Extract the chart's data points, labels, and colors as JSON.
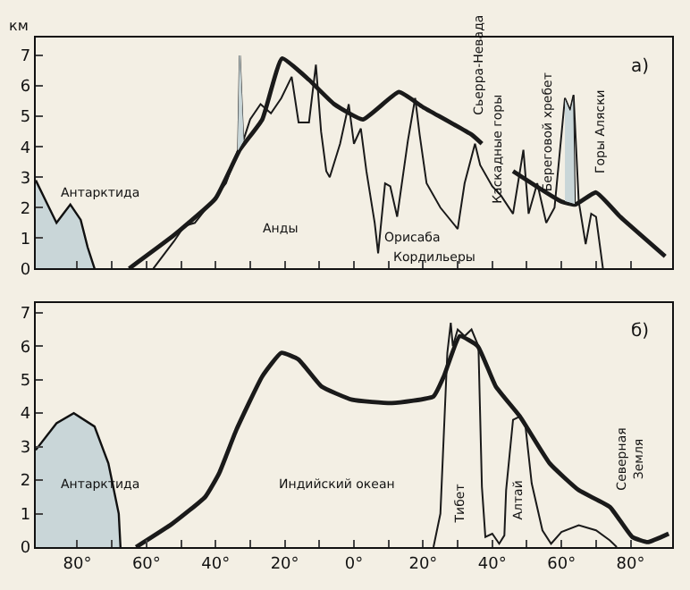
{
  "chart_data": [
    {
      "type": "line",
      "title": "а)",
      "ylabel": "км",
      "xlim": [
        -92,
        92
      ],
      "ylim": [
        0,
        7.6
      ],
      "yticks": [
        0,
        1,
        2,
        3,
        4,
        5,
        6,
        7
      ],
      "xticks": [
        {
          "value": -80,
          "label": null
        },
        {
          "value": -70,
          "label": null
        },
        {
          "value": -60,
          "label": null
        },
        {
          "value": -50,
          "label": null
        },
        {
          "value": -40,
          "label": null
        },
        {
          "value": -30,
          "label": null
        },
        {
          "value": -20,
          "label": null
        },
        {
          "value": -10,
          "label": null
        },
        {
          "value": 0,
          "label": null
        },
        {
          "value": 10,
          "label": null
        },
        {
          "value": 20,
          "label": null
        },
        {
          "value": 30,
          "label": null
        },
        {
          "value": 40,
          "label": null
        },
        {
          "value": 50,
          "label": null
        },
        {
          "value": 60,
          "label": null
        },
        {
          "value": 70,
          "label": null
        },
        {
          "value": 80,
          "label": null
        }
      ],
      "tick_labels": "y",
      "grid": false,
      "series": [
        {
          "type": "area",
          "color": "#c9d6d8",
          "x": [
            -92,
            -89,
            -86,
            -84,
            -82,
            -79,
            -77,
            -75
          ],
          "values": [
            2.9,
            2.2,
            1.5,
            1.8,
            2.1,
            1.6,
            0.7,
            0
          ]
        },
        {
          "color": "#1a1a1a",
          "x": [
            -65,
            -52,
            -40,
            -33,
            -26.5,
            -20.8,
            -13,
            -5.7,
            2.6,
            13,
            20,
            34,
            37,
            41,
            46,
            60,
            64,
            70,
            77,
            90
          ],
          "values": [
            0,
            1.1,
            2.3,
            3.9,
            4.9,
            6.9,
            6.2,
            5.4,
            4.9,
            5.8,
            5.3,
            4.4,
            4.1,
            null,
            3.2,
            2.2,
            2.1,
            2.5,
            1.7,
            0.4
          ]
        },
        {
          "color": "#1a1a1a",
          "x": [
            -58,
            -52,
            -49,
            -46,
            -37,
            -33.5,
            -33,
            -32,
            -30,
            -27,
            -24,
            -21,
            -18,
            -16,
            -13,
            -11,
            -9.5,
            -8,
            -7,
            -4,
            -1.5,
            0,
            2,
            3.6,
            6,
            7,
            9,
            10.5,
            12.5,
            15.6,
            17.7,
            19,
            21,
            25,
            30,
            32,
            35,
            36.5,
            40,
            42.5,
            46,
            49,
            50.5,
            53,
            55.6,
            58,
            61,
            62.5,
            63.5,
            65,
            67,
            68.6,
            70,
            72
          ],
          "values": [
            0,
            0.9,
            1.4,
            1.5,
            2.8,
            3.9,
            7.0,
            4.2,
            4.9,
            5.4,
            5.1,
            5.6,
            6.3,
            4.8,
            4.8,
            6.7,
            4.5,
            3.2,
            3.0,
            4.1,
            5.4,
            4.1,
            4.6,
            3.2,
            1.5,
            0.5,
            2.8,
            2.7,
            1.7,
            4.2,
            5.6,
            4.4,
            2.8,
            2.0,
            1.3,
            2.8,
            4.1,
            3.4,
            2.7,
            2.4,
            1.8,
            3.9,
            1.8,
            2.8,
            1.5,
            2.0,
            5.6,
            5.2,
            5.7,
            2.2,
            0.8,
            1.8,
            1.7,
            0
          ]
        },
        {
          "type": "area",
          "color": "#c9d6d8",
          "x": [
            -33.5,
            -33,
            -32,
            -33.5
          ],
          "values": [
            3.9,
            7.0,
            4.2,
            3.9
          ]
        },
        {
          "type": "area",
          "color": "#c9d6d8",
          "x": [
            61,
            62.5,
            63.5,
            64,
            61
          ],
          "values": [
            5.6,
            5.2,
            5.7,
            2.1,
            2.2
          ]
        }
      ],
      "annotations": [
        "Антарктида",
        "Анды",
        "Орисаба",
        "Кордильеры",
        "Сьерра-Невада",
        "Каскадные горы",
        "Береговой хребет",
        "Горы Аляски"
      ]
    },
    {
      "type": "line",
      "title": "б)",
      "xlim": [
        -92,
        92
      ],
      "ylim": [
        0,
        7.3
      ],
      "yticks": [
        0,
        1,
        2,
        3,
        4,
        5,
        6,
        7
      ],
      "xticks": [
        {
          "value": -80,
          "label": "80°"
        },
        {
          "value": -70,
          "label": null
        },
        {
          "value": -60,
          "label": "60°"
        },
        {
          "value": -50,
          "label": null
        },
        {
          "value": -40,
          "label": "40°"
        },
        {
          "value": -30,
          "label": null
        },
        {
          "value": -20,
          "label": "20°"
        },
        {
          "value": -10,
          "label": null
        },
        {
          "value": 0,
          "label": "0°"
        },
        {
          "value": 10,
          "label": null
        },
        {
          "value": 20,
          "label": "20°"
        },
        {
          "value": 30,
          "label": null
        },
        {
          "value": 40,
          "label": "40°"
        },
        {
          "value": 50,
          "label": null
        },
        {
          "value": 60,
          "label": "60°"
        },
        {
          "value": 70,
          "label": null
        },
        {
          "value": 80,
          "label": "80°"
        }
      ],
      "grid": false,
      "series": [
        {
          "type": "area",
          "color": "#c9d6d8",
          "x": [
            -92,
            -86,
            -81,
            -75,
            -71,
            -68,
            -67.5
          ],
          "values": [
            2.9,
            3.7,
            4.0,
            3.6,
            2.5,
            1.0,
            0
          ]
        },
        {
          "color": "#1a1a1a",
          "x": [
            -63,
            -52.5,
            -43,
            -39,
            -34,
            -26.5,
            -21,
            -16,
            -9.4,
            -0.5,
            11,
            23,
            26,
            30.6,
            35.8,
            41,
            48,
            56.6,
            65,
            74,
            80.5,
            85,
            91
          ],
          "values": [
            0,
            0.7,
            1.5,
            2.2,
            3.5,
            5.1,
            5.8,
            5.6,
            4.8,
            4.4,
            4.3,
            4.5,
            5.1,
            6.3,
            6.0,
            4.8,
            3.9,
            2.5,
            1.7,
            1.2,
            0.3,
            0.15,
            0.4
          ]
        },
        {
          "color": "#1a1a1a",
          "x": [
            23,
            25,
            27,
            28,
            28.6,
            30,
            32,
            34,
            36,
            37,
            38,
            40,
            42,
            43.5,
            44,
            46,
            48,
            49.6,
            51.4,
            54.5,
            57,
            60,
            65,
            70,
            74,
            76
          ],
          "values": [
            0,
            1.0,
            5.8,
            6.7,
            6.0,
            6.5,
            6.3,
            6.5,
            6.0,
            1.8,
            0.3,
            0.4,
            0.1,
            0.35,
            1.7,
            3.8,
            3.9,
            3.6,
            1.9,
            0.5,
            0.1,
            0.45,
            0.65,
            0.5,
            0.2,
            0
          ]
        }
      ],
      "annotations": [
        "Антарктида",
        "Индийский океан",
        "Тибет",
        "Алтай",
        "Северная\nЗемля"
      ]
    }
  ]
}
